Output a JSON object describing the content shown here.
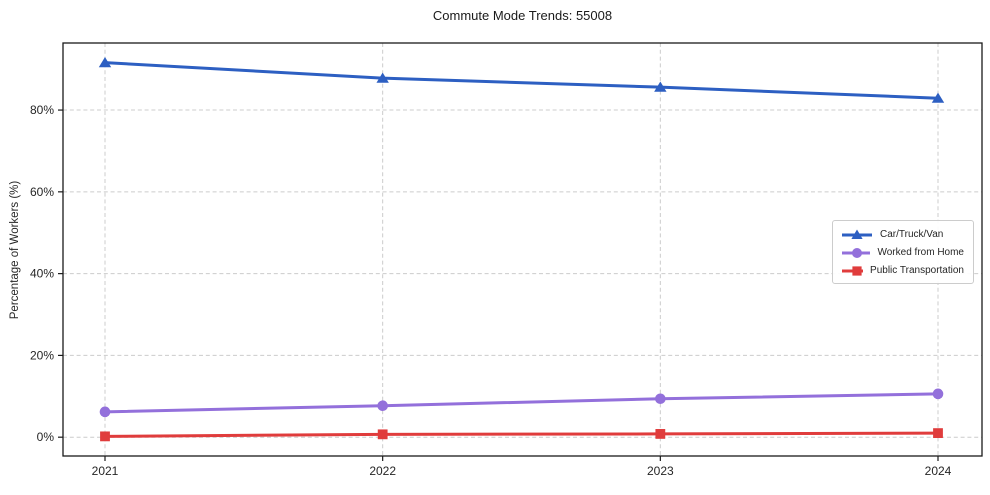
{
  "chart_data": {
    "type": "line",
    "title": "Commute Mode Trends: 55008",
    "xlabel": "",
    "ylabel": "Percentage of Workers (%)",
    "categories": [
      "2021",
      "2022",
      "2023",
      "2024"
    ],
    "series": [
      {
        "name": "Car/Truck/Van",
        "color": "#2d5fc2",
        "marker": "triangle",
        "values": [
          91.6,
          87.8,
          85.6,
          82.9
        ]
      },
      {
        "name": "Worked from Home",
        "color": "#9370db",
        "marker": "circle",
        "values": [
          6.2,
          7.7,
          9.4,
          10.6
        ]
      },
      {
        "name": "Public Transportation",
        "color": "#e03c3c",
        "marker": "square",
        "values": [
          0.2,
          0.7,
          0.8,
          1.0
        ]
      }
    ],
    "yticks": {
      "values": [
        0,
        20,
        40,
        60,
        80
      ],
      "labels": [
        "0%",
        "20%",
        "40%",
        "60%",
        "80%"
      ]
    },
    "ylim": [
      -4.6,
      96.4
    ],
    "grid": true,
    "grid_style": "dashed",
    "grid_color": "#cccccc",
    "axis_color": "#1a1a1a",
    "legend_position": "center-right"
  }
}
